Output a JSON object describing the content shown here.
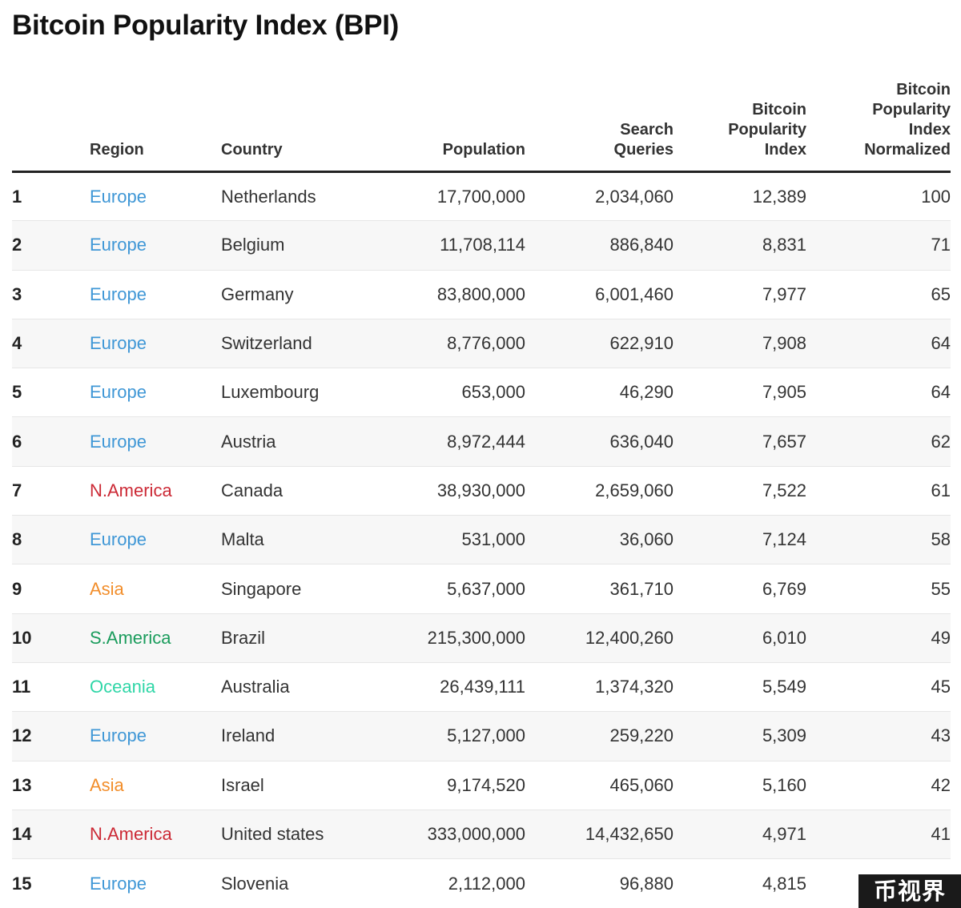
{
  "title": "Bitcoin Popularity Index (BPI)",
  "watermark": "币视界",
  "region_colors": {
    "Europe": "#3f97d6",
    "N.America": "#cc2a36",
    "Asia": "#f28e2b",
    "S.America": "#1a9c5c",
    "Oceania": "#2fd6a7"
  },
  "chart_data": {
    "type": "table",
    "columns": [
      "",
      "Region",
      "Country",
      "Population",
      "Search Queries",
      "Bitcoin Popularity Index",
      "Bitcoin Popularity Index Normalized"
    ],
    "column_header_lines": [
      [
        ""
      ],
      [
        "Region"
      ],
      [
        "Country"
      ],
      [
        "Population"
      ],
      [
        "Search",
        "Queries"
      ],
      [
        "Bitcoin",
        "Popularity",
        "Index"
      ],
      [
        "Bitcoin",
        "Popularity",
        "Index",
        "Normalized"
      ]
    ],
    "rows": [
      {
        "rank": "1",
        "region": "Europe",
        "country": "Netherlands",
        "population": "17,700,000",
        "search_queries": "2,034,060",
        "bpi": "12,389",
        "bpi_normalized": "100"
      },
      {
        "rank": "2",
        "region": "Europe",
        "country": "Belgium",
        "population": "11,708,114",
        "search_queries": "886,840",
        "bpi": "8,831",
        "bpi_normalized": "71"
      },
      {
        "rank": "3",
        "region": "Europe",
        "country": "Germany",
        "population": "83,800,000",
        "search_queries": "6,001,460",
        "bpi": "7,977",
        "bpi_normalized": "65"
      },
      {
        "rank": "4",
        "region": "Europe",
        "country": "Switzerland",
        "population": "8,776,000",
        "search_queries": "622,910",
        "bpi": "7,908",
        "bpi_normalized": "64"
      },
      {
        "rank": "5",
        "region": "Europe",
        "country": "Luxembourg",
        "population": "653,000",
        "search_queries": "46,290",
        "bpi": "7,905",
        "bpi_normalized": "64"
      },
      {
        "rank": "6",
        "region": "Europe",
        "country": "Austria",
        "population": "8,972,444",
        "search_queries": "636,040",
        "bpi": "7,657",
        "bpi_normalized": "62"
      },
      {
        "rank": "7",
        "region": "N.America",
        "country": "Canada",
        "population": "38,930,000",
        "search_queries": "2,659,060",
        "bpi": "7,522",
        "bpi_normalized": "61"
      },
      {
        "rank": "8",
        "region": "Europe",
        "country": "Malta",
        "population": "531,000",
        "search_queries": "36,060",
        "bpi": "7,124",
        "bpi_normalized": "58"
      },
      {
        "rank": "9",
        "region": "Asia",
        "country": "Singapore",
        "population": "5,637,000",
        "search_queries": "361,710",
        "bpi": "6,769",
        "bpi_normalized": "55"
      },
      {
        "rank": "10",
        "region": "S.America",
        "country": "Brazil",
        "population": "215,300,000",
        "search_queries": "12,400,260",
        "bpi": "6,010",
        "bpi_normalized": "49"
      },
      {
        "rank": "11",
        "region": "Oceania",
        "country": "Australia",
        "population": "26,439,111",
        "search_queries": "1,374,320",
        "bpi": "5,549",
        "bpi_normalized": "45"
      },
      {
        "rank": "12",
        "region": "Europe",
        "country": "Ireland",
        "population": "5,127,000",
        "search_queries": "259,220",
        "bpi": "5,309",
        "bpi_normalized": "43"
      },
      {
        "rank": "13",
        "region": "Asia",
        "country": "Israel",
        "population": "9,174,520",
        "search_queries": "465,060",
        "bpi": "5,160",
        "bpi_normalized": "42"
      },
      {
        "rank": "14",
        "region": "N.America",
        "country": "United states",
        "population": "333,000,000",
        "search_queries": "14,432,650",
        "bpi": "4,971",
        "bpi_normalized": "41"
      },
      {
        "rank": "15",
        "region": "Europe",
        "country": "Slovenia",
        "population": "2,112,000",
        "search_queries": "96,880",
        "bpi": "4,815",
        "bpi_normalized": ""
      }
    ]
  }
}
